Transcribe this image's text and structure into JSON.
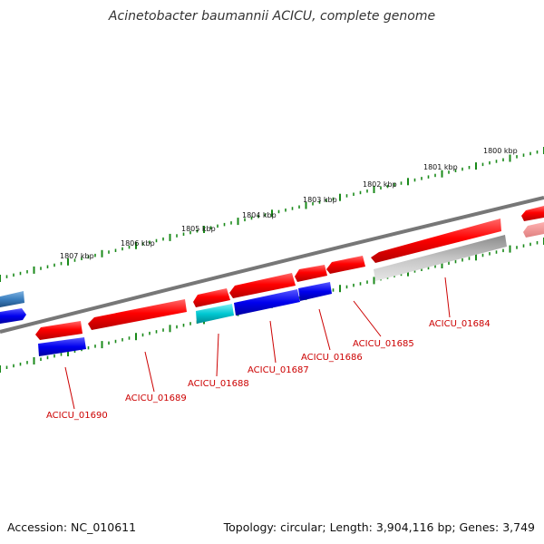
{
  "header": {
    "title": "Acinetobacter baumannii ACICU, complete genome"
  },
  "footer": {
    "accession": "Accession: NC_010611",
    "summary": "Topology: circular; Length: 3,904,116 bp; Genes: 3,749"
  },
  "ruler": {
    "tick_labels": [
      "1800 kbp",
      "1801 kbp",
      "1802 kbp",
      "1803 kbp",
      "1804 kbp",
      "1805 kbp",
      "1806 kbp",
      "1807 kbp"
    ]
  },
  "genes": {
    "labels": [
      "ACICU_01684",
      "ACICU_01685",
      "ACICU_01686",
      "ACICU_01687",
      "ACICU_01688",
      "ACICU_01689",
      "ACICU_01690"
    ]
  },
  "colors": {
    "gene_red": "#ff0000",
    "cds_blue": "#0000ee",
    "cds_cyan": "#00c8d2",
    "steel_blue": "#3a7fbf",
    "pseudo_gray": "#b0b0b0",
    "backbone": "#777777",
    "tick_green": "#1a8a1a",
    "label_red": "#cc0000"
  }
}
